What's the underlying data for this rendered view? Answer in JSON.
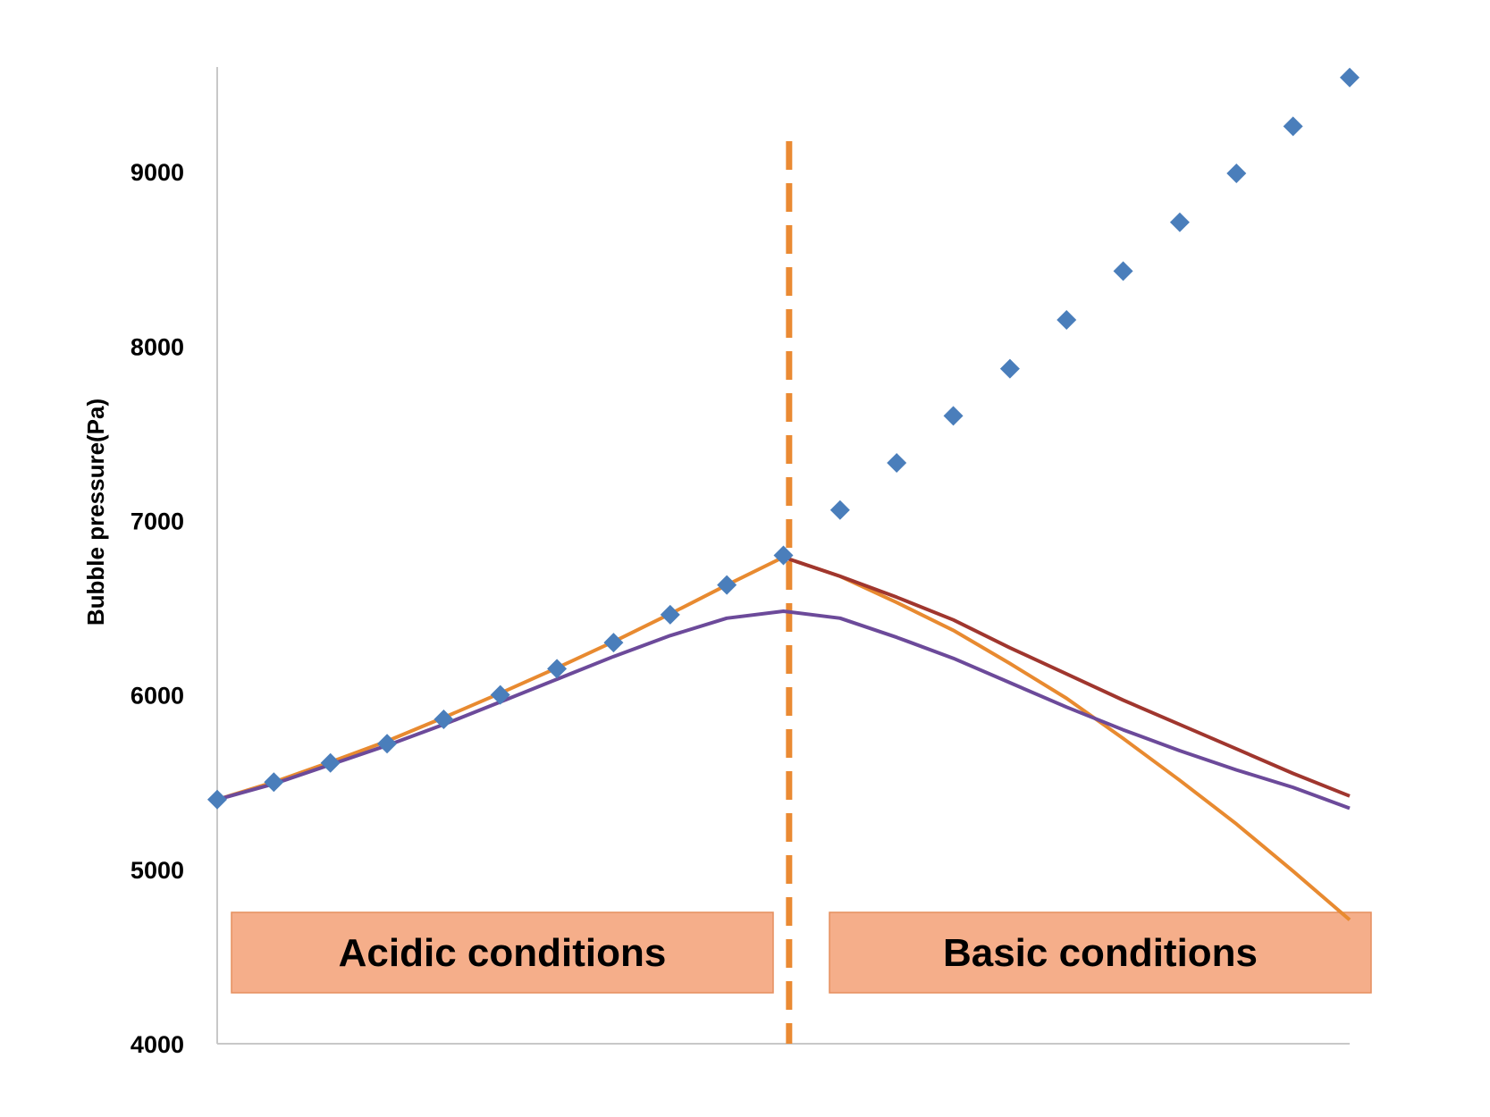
{
  "chart_data": {
    "type": "line",
    "title": "",
    "xlabel": "",
    "ylabel": "Bubble pressure(Pa)",
    "ylim": [
      4000,
      9600
    ],
    "yticks": [
      4000,
      5000,
      6000,
      7000,
      8000,
      9000
    ],
    "x": [
      0,
      1,
      2,
      3,
      4,
      5,
      6,
      7,
      8,
      9,
      10,
      11,
      12,
      13,
      14,
      15,
      16,
      17,
      18,
      19,
      20
    ],
    "grid": false,
    "legend": "none",
    "vline_x": 10.1,
    "series": [
      {
        "name": "",
        "kind": "markers",
        "color": "#4a7ebb",
        "x": [
          0,
          1,
          2,
          3,
          4,
          5,
          6,
          7,
          8,
          9,
          10,
          11,
          12,
          13,
          14,
          15,
          16,
          17,
          18,
          19,
          20
        ],
        "values": [
          5400,
          5500,
          5610,
          5720,
          5860,
          6000,
          6150,
          6300,
          6460,
          6630,
          6800,
          7060,
          7330,
          7600,
          7870,
          8150,
          8430,
          8710,
          8990,
          9260,
          9540
        ]
      },
      {
        "name": "",
        "kind": "line",
        "color": "#e88a30",
        "x": [
          0,
          1,
          2,
          3,
          4,
          5,
          6,
          7,
          8,
          9,
          10,
          11,
          12,
          13,
          14,
          15,
          16,
          17,
          18,
          19,
          20
        ],
        "values": [
          5400,
          5500,
          5615,
          5735,
          5870,
          6010,
          6155,
          6305,
          6465,
          6630,
          6790,
          6680,
          6530,
          6370,
          6180,
          5980,
          5750,
          5510,
          5260,
          4990,
          4710
        ]
      },
      {
        "name": "",
        "kind": "line",
        "color": "#a0362e",
        "x": [
          10,
          11,
          12,
          13,
          14,
          15,
          16,
          17,
          18,
          19,
          20
        ],
        "values": [
          6790,
          6680,
          6560,
          6430,
          6270,
          6120,
          5970,
          5830,
          5690,
          5550,
          5420
        ]
      },
      {
        "name": "",
        "kind": "line",
        "color": "#6c4a9a",
        "x": [
          0,
          1,
          2,
          3,
          4,
          5,
          6,
          7,
          8,
          9,
          10,
          11,
          12,
          13,
          14,
          15,
          16,
          17,
          18,
          19,
          20
        ],
        "values": [
          5400,
          5490,
          5600,
          5710,
          5830,
          5960,
          6090,
          6220,
          6340,
          6440,
          6480,
          6440,
          6330,
          6210,
          6070,
          5930,
          5800,
          5680,
          5570,
          5470,
          5350
        ]
      }
    ],
    "annotations": [
      {
        "text": "Acidic conditions",
        "side": "left"
      },
      {
        "text": "Basic conditions",
        "side": "right"
      }
    ]
  }
}
